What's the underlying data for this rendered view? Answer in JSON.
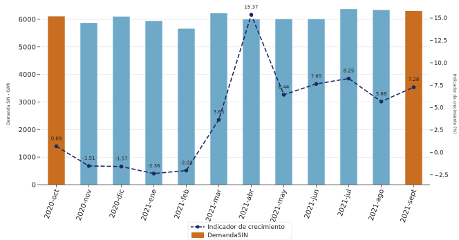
{
  "chart_data": {
    "type": "bar",
    "categories": [
      "2020-oct",
      "2020-nov",
      "2020-dic",
      "2021-ene",
      "2021-feb",
      "2021-mar",
      "2021-abr",
      "2021-may",
      "2021-jun",
      "2021-jul",
      "2021-ago",
      "2021-sept"
    ],
    "series": [
      {
        "name": "DemandaSIN",
        "type": "bar",
        "axis": "left",
        "values": [
          6110,
          5870,
          6100,
          5940,
          5660,
          6220,
          6000,
          6010,
          6010,
          6370,
          6340,
          6300
        ],
        "highlight": [
          true,
          false,
          false,
          false,
          false,
          false,
          false,
          false,
          false,
          false,
          false,
          true
        ]
      },
      {
        "name": "Indicador de crecimiento",
        "type": "line",
        "axis": "right",
        "values": [
          0.69,
          -1.51,
          -1.57,
          -2.36,
          -2.02,
          3.65,
          15.37,
          6.44,
          7.65,
          8.25,
          5.68,
          7.28
        ],
        "labels": [
          "0.69",
          "-1.51",
          "-1.57",
          "-2.36",
          "-2.02",
          "3.65",
          "15.37",
          "6.44",
          "7.65",
          "8.25",
          "5.68",
          "7.28"
        ]
      }
    ],
    "ylabel": "Demanda SIN - GWh",
    "ylabel_right": "Indicador de crecimiento (%)",
    "ylim": [
      0,
      6500
    ],
    "ylim_right": [
      -3.6,
      16.4
    ],
    "yticks": [
      "0",
      "1000",
      "2000",
      "3000",
      "4000",
      "5000",
      "6000"
    ],
    "yticks_right": [
      "−2.5",
      "0.0",
      "2.5",
      "5.0",
      "7.5",
      "10.0",
      "12.5",
      "15.0"
    ],
    "ytick_values": [
      0,
      1000,
      2000,
      3000,
      4000,
      5000,
      6000
    ],
    "ytick_right_values": [
      -2.5,
      0,
      2.5,
      5,
      7.5,
      10,
      12.5,
      15
    ],
    "grid": true,
    "legend_position": "bottom-center",
    "colors": {
      "bar": "#6ea9c8",
      "bar_highlight": "#c96d21",
      "line": "#1f2a63",
      "grid": "#dddddd"
    }
  },
  "legend": {
    "line_label": "Indicador de crecimiento",
    "bar_label": "DemandaSIN"
  }
}
